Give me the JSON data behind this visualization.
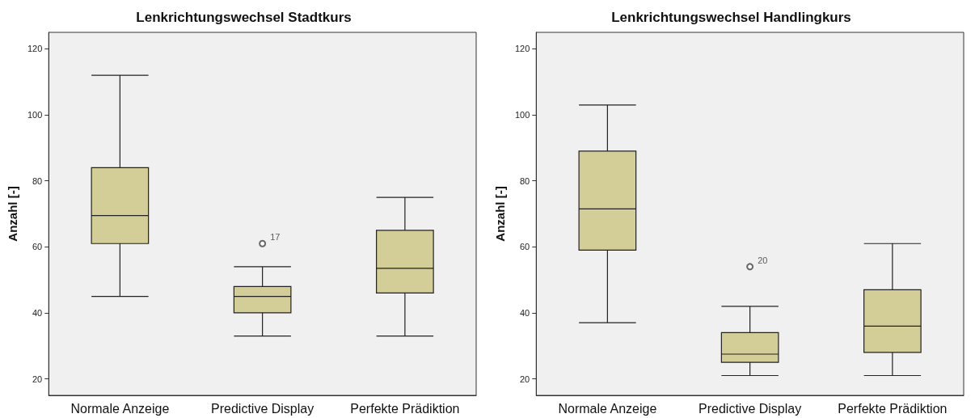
{
  "chart_data": [
    {
      "type": "box",
      "title": "Lenkrichtungswechsel Stadtkurs",
      "ylabel": "Anzahl [-]",
      "categories": [
        "Normale Anzeige",
        "Predictive Display",
        "Perfekte Prädiktion"
      ],
      "color": "#d3cd98",
      "boxes": [
        {
          "low": 45,
          "q1": 61,
          "median": 69.5,
          "q3": 84,
          "high": 112
        },
        {
          "low": 33,
          "q1": 40,
          "median": 45,
          "q3": 48,
          "high": 54,
          "outliers": [
            61
          ]
        },
        {
          "low": 33,
          "q1": 46,
          "median": 53.5,
          "q3": 65,
          "high": 75
        }
      ],
      "annotations": [
        "17"
      ],
      "ylim": [
        15,
        125
      ],
      "yticks": [
        20,
        40,
        60,
        80,
        100,
        120
      ],
      "grid": false,
      "marker": "circle"
    },
    {
      "type": "box",
      "title": "Lenkrichtungswechsel Handlingkurs",
      "ylabel": "Anzahl [-]",
      "categories": [
        "Normale Anzeige",
        "Predictive Display",
        "Perfekte Prädiktion"
      ],
      "color": "#d3cd98",
      "boxes": [
        {
          "low": 37,
          "q1": 59,
          "median": 71.5,
          "q3": 89,
          "high": 103
        },
        {
          "low": 21,
          "q1": 25,
          "median": 27.5,
          "q3": 34,
          "high": 42,
          "outliers": [
            54
          ]
        },
        {
          "low": 21,
          "q1": 28,
          "median": 36,
          "q3": 47,
          "high": 61
        }
      ],
      "annotations": [
        "20"
      ],
      "ylim": [
        15,
        125
      ],
      "yticks": [
        20,
        40,
        60,
        80,
        100,
        120
      ],
      "grid": false,
      "marker": "circle"
    }
  ]
}
